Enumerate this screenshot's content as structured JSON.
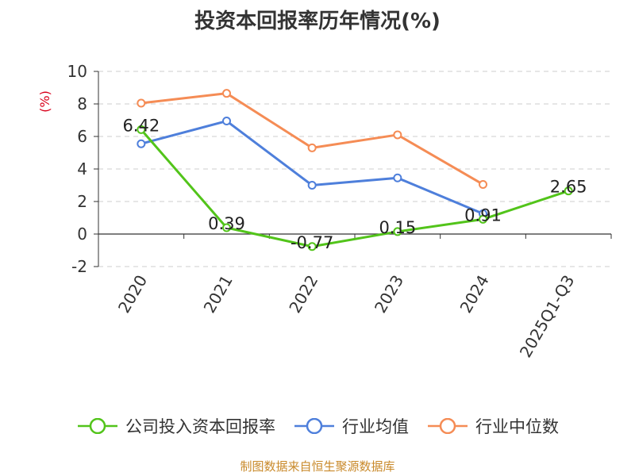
{
  "source_note": "制图数据来自恒生聚源数据库",
  "colors": {
    "company": "#52c41a",
    "industry_avg": "#4e7fdb",
    "industry_median": "#f58c55",
    "unit_label": "#d9001b"
  },
  "chart_data": {
    "type": "line",
    "title": "投资本回报率历年情况(%)",
    "ylabel": "(%)",
    "categories": [
      "2020",
      "2021",
      "2022",
      "2023",
      "2024",
      "2025Q1-Q3"
    ],
    "yticks": [
      "10",
      "8",
      "6",
      "4",
      "2",
      "0",
      "-2"
    ],
    "ylim": [
      -2,
      10
    ],
    "grid": true,
    "legend_position": "bottom",
    "series": [
      {
        "name": "公司投入资本回报率",
        "color": "#52c41a",
        "values": [
          6.42,
          0.39,
          -0.77,
          0.15,
          0.91,
          2.65
        ],
        "labels": [
          "6.42",
          "0.39",
          "-0.77",
          "0.15",
          "0.91",
          "2.65"
        ]
      },
      {
        "name": "行业均值",
        "color": "#4e7fdb",
        "values": [
          5.55,
          6.95,
          3.0,
          3.45,
          1.25,
          null
        ]
      },
      {
        "name": "行业中位数",
        "color": "#f58c55",
        "values": [
          8.05,
          8.65,
          5.3,
          6.1,
          3.05,
          null
        ]
      }
    ]
  }
}
